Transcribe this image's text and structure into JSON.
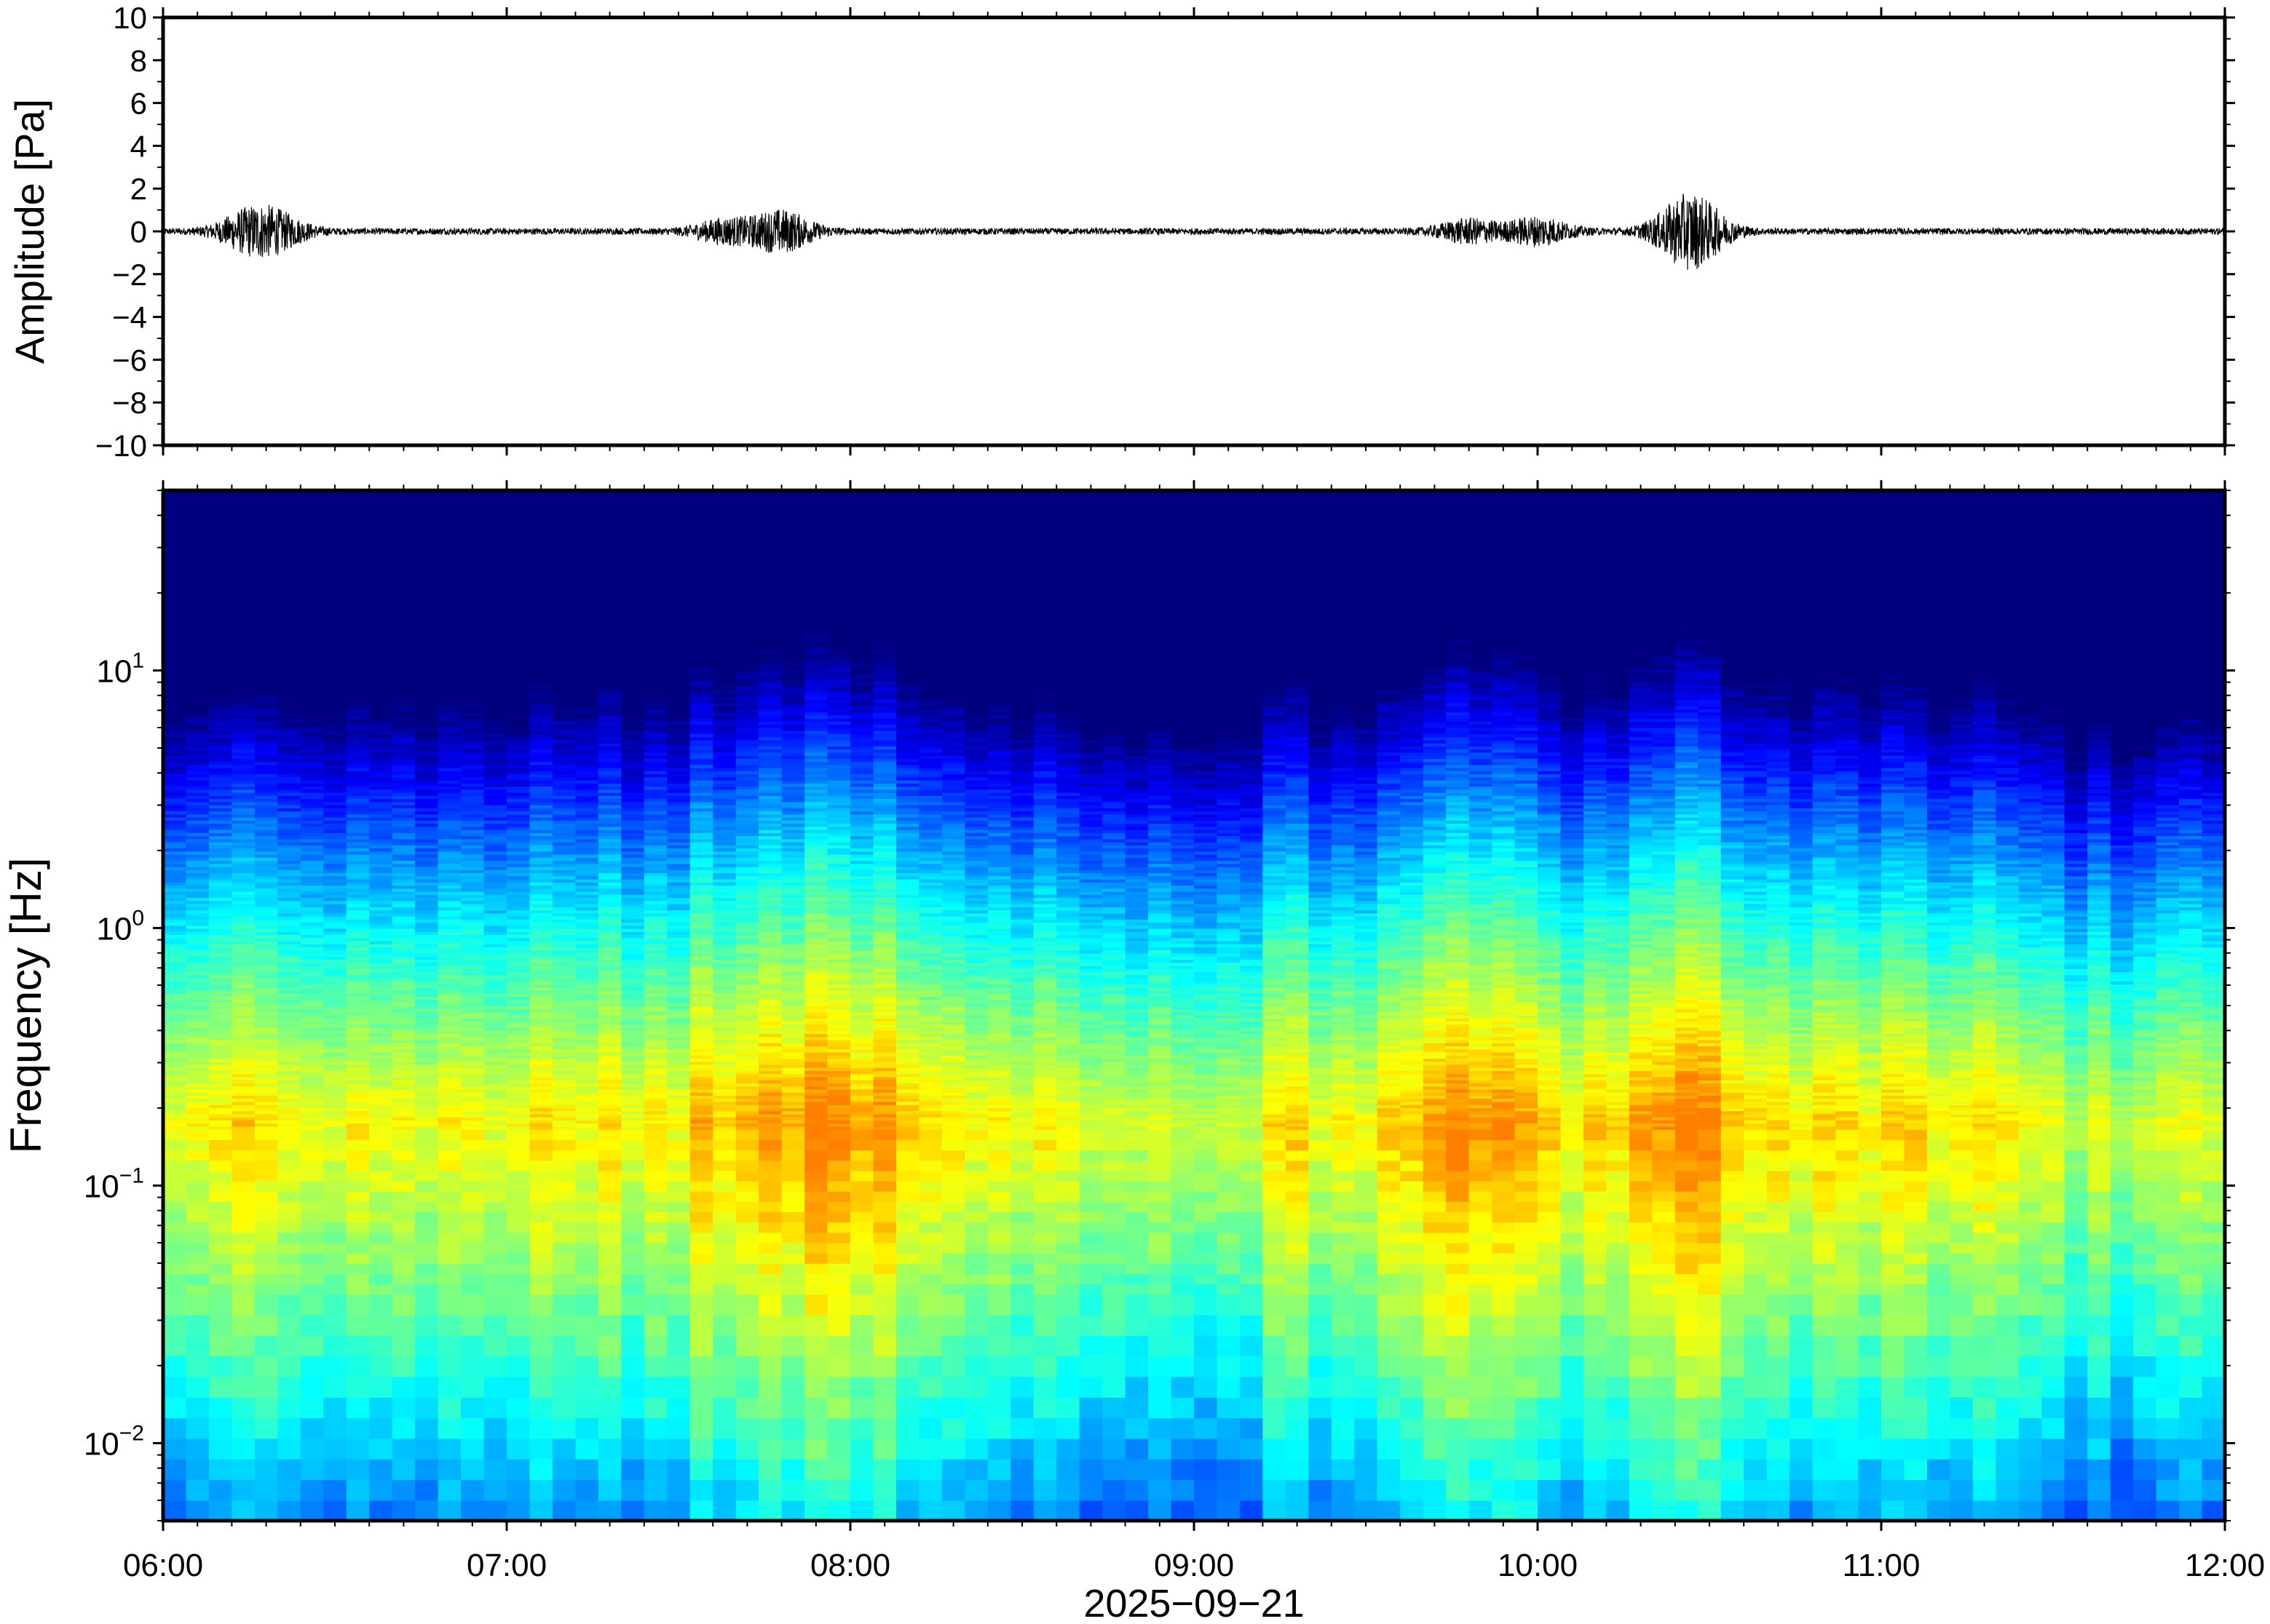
{
  "chart_data": [
    {
      "type": "line",
      "panel": "waveform",
      "ylabel": "Amplitude [Pa]",
      "ylim": [
        -10,
        10
      ],
      "yticks": [
        "10",
        "8",
        "6",
        "4",
        "2",
        "0",
        "−2",
        "−4",
        "−6",
        "−8",
        "−10"
      ],
      "ytick_values": [
        10,
        8,
        6,
        4,
        2,
        0,
        -2,
        -4,
        -6,
        -8,
        -10
      ],
      "xlim": [
        "06:00",
        "12:00"
      ],
      "grid": false,
      "series": [
        {
          "bursts": [
            {
              "time": "06:15",
              "amplitude": 0.8
            },
            {
              "time": "06:20",
              "amplitude": 0.6
            },
            {
              "time": "07:38",
              "amplitude": 0.5
            },
            {
              "time": "07:48",
              "amplitude": 0.9
            },
            {
              "time": "09:48",
              "amplitude": 0.5
            },
            {
              "time": "10:00",
              "amplitude": 0.6
            },
            {
              "time": "10:25",
              "amplitude": 0.8
            },
            {
              "time": "10:28",
              "amplitude": 1.0
            }
          ],
          "baseline_amplitude": 0.15
        }
      ]
    },
    {
      "type": "heatmap",
      "panel": "spectrogram",
      "ylabel": "Frequency [Hz]",
      "yscale": "log",
      "ylim": [
        0.005,
        50
      ],
      "yticks": [
        {
          "base": "10",
          "exp": "1",
          "value": 10
        },
        {
          "base": "10",
          "exp": "0",
          "value": 1
        },
        {
          "base": "10",
          "exp": "−1",
          "value": 0.1
        },
        {
          "base": "10",
          "exp": "−2",
          "value": 0.01
        }
      ],
      "xlabel": "2025−09−21",
      "xticks": [
        "06:00",
        "07:00",
        "08:00",
        "09:00",
        "10:00",
        "11:00",
        "12:00"
      ],
      "xlim": [
        "06:00",
        "12:00"
      ],
      "colormap": [
        "#00007f",
        "#0000ff",
        "#007fff",
        "#00ffff",
        "#7fff7f",
        "#ffff00",
        "#ff7f00"
      ],
      "peak_frequency_band_hz": [
        0.15,
        0.2
      ],
      "energetic_intervals": [
        {
          "start": "07:35",
          "end": "08:10"
        },
        {
          "start": "09:45",
          "end": "10:00"
        },
        {
          "start": "10:17",
          "end": "10:32"
        }
      ],
      "quiet_intervals": [
        {
          "start": "08:35",
          "end": "09:10"
        },
        {
          "start": "11:30",
          "end": "12:00"
        }
      ]
    }
  ]
}
